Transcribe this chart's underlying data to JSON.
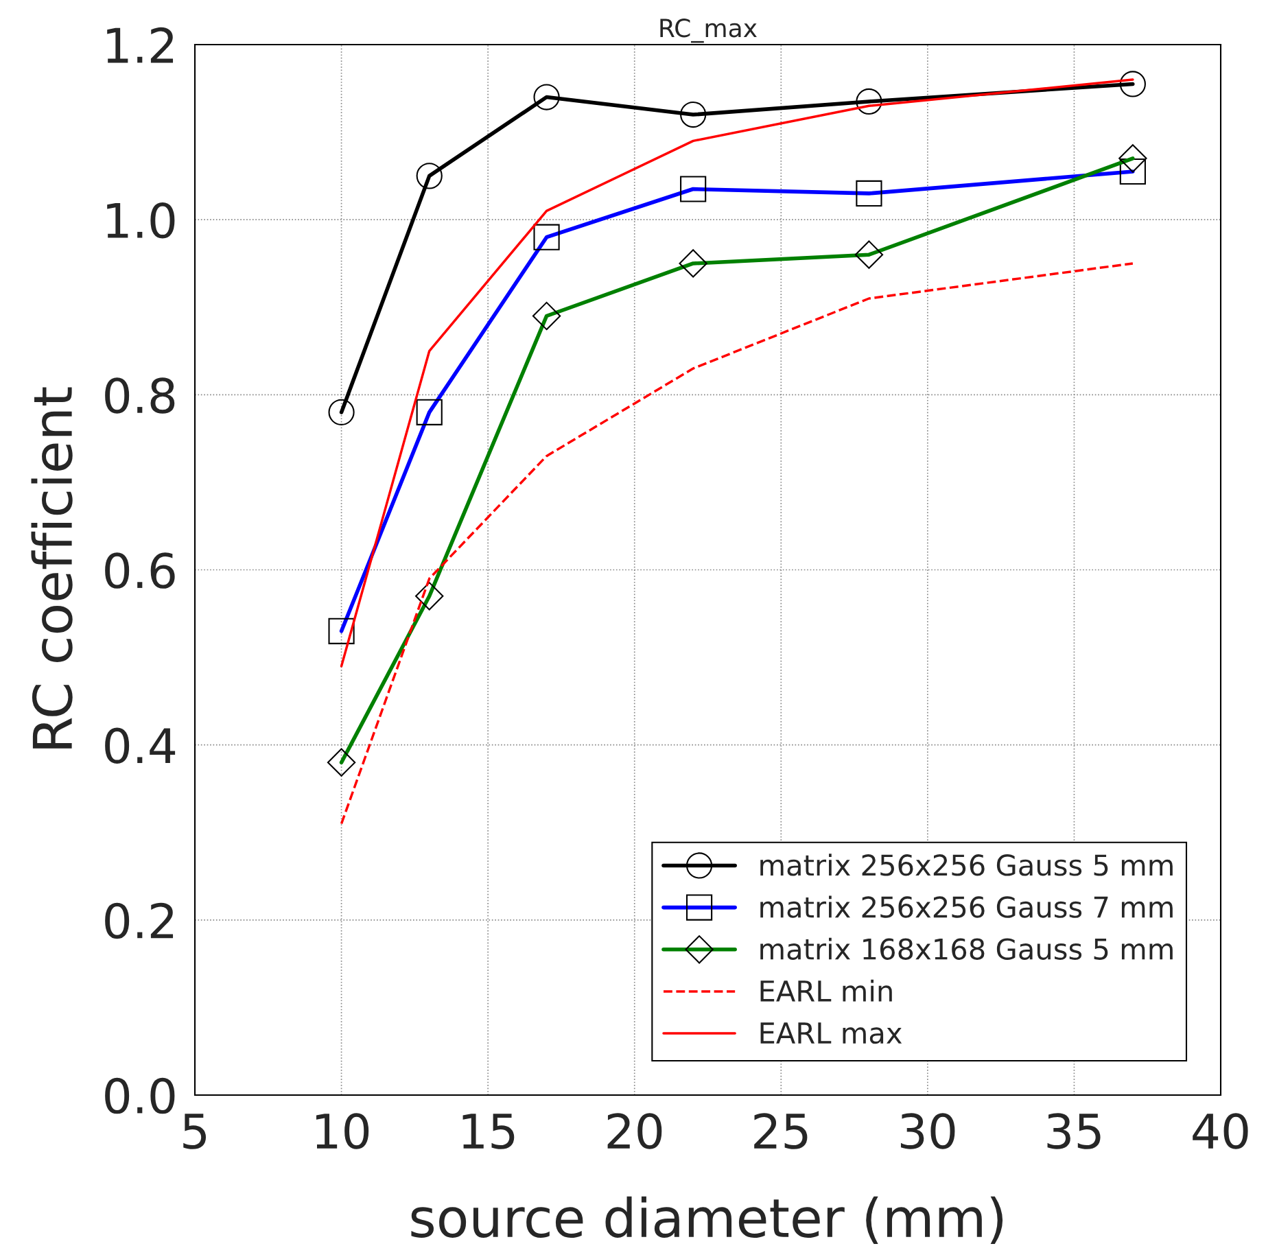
{
  "chart_data": {
    "type": "line",
    "title": "RC_max",
    "xlabel": "source diameter (mm)",
    "ylabel": "RC coefficient",
    "x": [
      10,
      13,
      17,
      22,
      28,
      37
    ],
    "series": [
      {
        "name": "matrix 256x256 Gauss 5 mm",
        "color": "#000000",
        "marker": "circle",
        "line_style": "solid",
        "values": [
          0.78,
          1.05,
          1.14,
          1.12,
          1.135,
          1.155
        ]
      },
      {
        "name": "matrix 256x256 Gauss 7 mm",
        "color": "#0000ff",
        "marker": "square",
        "line_style": "solid",
        "values": [
          0.53,
          0.78,
          0.98,
          1.035,
          1.03,
          1.055
        ]
      },
      {
        "name": "matrix 168x168 Gauss 5 mm",
        "color": "#008000",
        "marker": "diamond",
        "line_style": "solid",
        "values": [
          0.38,
          0.57,
          0.89,
          0.95,
          0.96,
          1.07
        ]
      },
      {
        "name": "EARL min",
        "color": "#ff0000",
        "marker": "none",
        "line_style": "dashed",
        "values": [
          0.31,
          0.59,
          0.73,
          0.83,
          0.91,
          0.95
        ]
      },
      {
        "name": "EARL max",
        "color": "#ff0000",
        "marker": "none",
        "line_style": "solid",
        "values": [
          0.49,
          0.85,
          1.01,
          1.09,
          1.13,
          1.16
        ]
      }
    ],
    "xlim": [
      5,
      40
    ],
    "xticks": [
      5,
      10,
      15,
      20,
      25,
      30,
      35,
      40
    ],
    "ylim": [
      0.0,
      1.2
    ],
    "yticks": [
      {
        "value": 0.0,
        "label": "0.0"
      },
      {
        "value": 0.2,
        "label": "0.2"
      },
      {
        "value": 0.4,
        "label": "0.4"
      },
      {
        "value": 0.6,
        "label": "0.6"
      },
      {
        "value": 0.8,
        "label": "0.8"
      },
      {
        "value": 1.0,
        "label": "1.0"
      },
      {
        "value": 1.2,
        "label": "1.2"
      }
    ],
    "grid": true,
    "legend": "bottom right"
  }
}
